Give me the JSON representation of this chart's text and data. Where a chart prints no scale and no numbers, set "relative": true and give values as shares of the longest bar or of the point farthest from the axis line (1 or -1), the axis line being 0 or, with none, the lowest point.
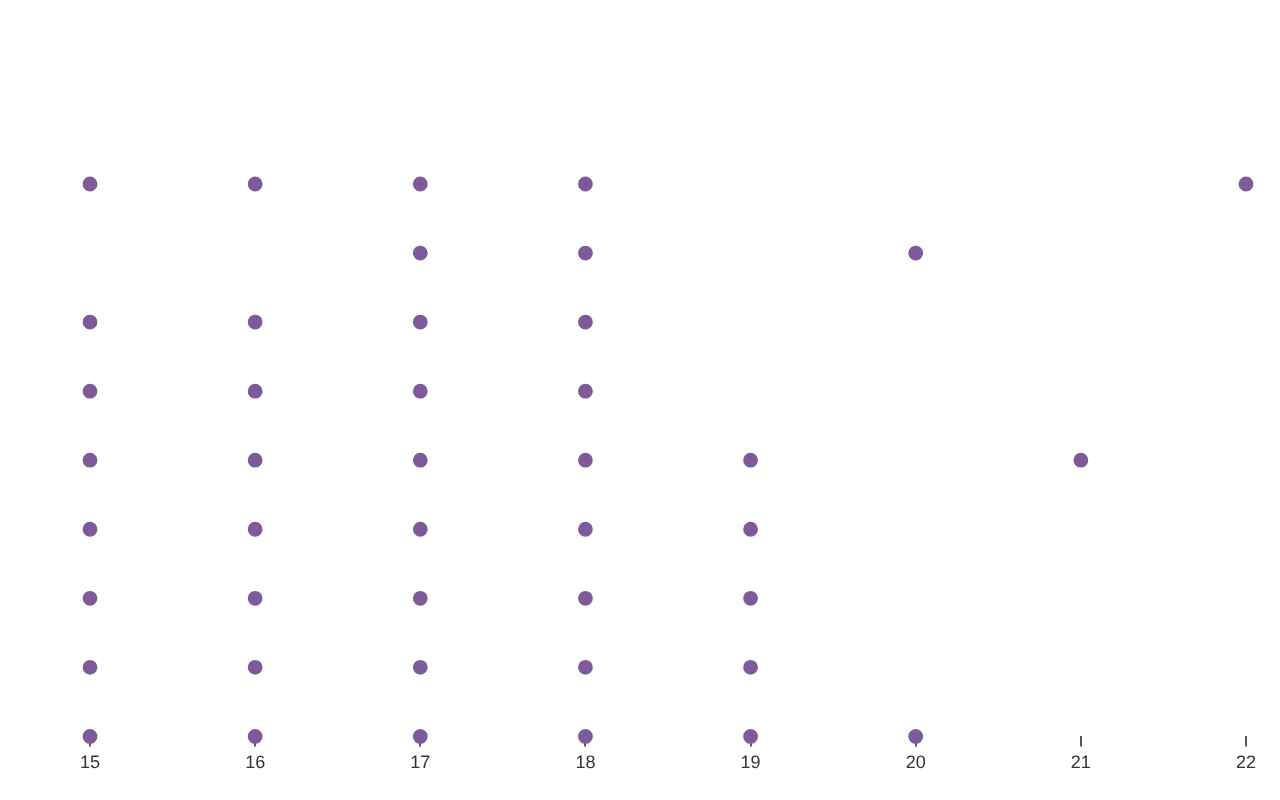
{
  "chart_data": {
    "type": "scatter",
    "relative": true,
    "color": "#7e5a9b",
    "marker": "circle",
    "grid": false,
    "legend": false,
    "tick_labels": "x",
    "x": [
      15,
      15,
      15,
      15,
      15,
      15,
      15,
      15,
      16,
      16,
      16,
      16,
      16,
      16,
      16,
      16,
      17,
      17,
      17,
      17,
      17,
      17,
      17,
      17,
      17,
      18,
      18,
      18,
      18,
      18,
      18,
      18,
      18,
      18,
      19,
      19,
      19,
      19,
      19,
      20,
      20,
      21,
      22
    ],
    "values": [
      0,
      0.125,
      0.25,
      0.375,
      0.5,
      0.625,
      0.75,
      1,
      0,
      0.125,
      0.25,
      0.375,
      0.5,
      0.625,
      0.75,
      1,
      0,
      0.125,
      0.25,
      0.375,
      0.5,
      0.625,
      0.75,
      0.875,
      1,
      0,
      0.125,
      0.25,
      0.375,
      0.5,
      0.625,
      0.75,
      0.875,
      1,
      0,
      0.125,
      0.25,
      0.375,
      0.5,
      0,
      0.875,
      0.5,
      1
    ],
    "xlim": [
      15,
      22
    ],
    "xticks": [
      15,
      16,
      17,
      18,
      19,
      20,
      21,
      22
    ]
  }
}
